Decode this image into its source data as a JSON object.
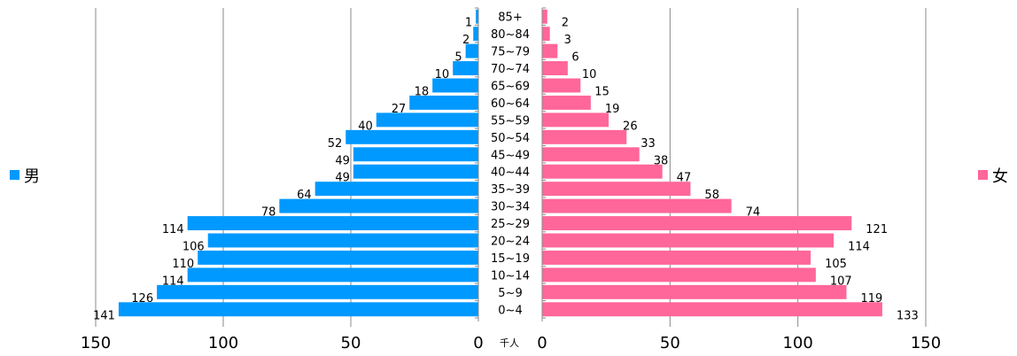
{
  "chart_data": {
    "type": "bar",
    "categories": [
      "0~4",
      "5~9",
      "10~14",
      "15~19",
      "20~24",
      "25~29",
      "30~34",
      "35~39",
      "40~44",
      "45~49",
      "50~54",
      "55~59",
      "60~64",
      "65~69",
      "70~74",
      "75~79",
      "80~84",
      "85+"
    ],
    "series": [
      {
        "name": "男",
        "values": [
          141,
          126,
          114,
          110,
          106,
          114,
          78,
          64,
          49,
          49,
          52,
          40,
          27,
          18,
          10,
          5,
          2,
          1
        ],
        "color": "#0099ff"
      },
      {
        "name": "女",
        "values": [
          133,
          119,
          107,
          105,
          114,
          121,
          74,
          58,
          47,
          38,
          33,
          26,
          19,
          15,
          10,
          6,
          3,
          2
        ],
        "color": "#ff6699"
      }
    ],
    "xlim": [
      0,
      150
    ],
    "ticks": [
      0,
      50,
      100,
      150
    ],
    "tick_labels_left": [
      "0",
      "50",
      "100",
      "150"
    ],
    "tick_labels_right": [
      "0",
      "50",
      "100",
      "150"
    ],
    "unit": "千人",
    "grid": true,
    "legend": {
      "left": "男",
      "right": "女"
    }
  }
}
